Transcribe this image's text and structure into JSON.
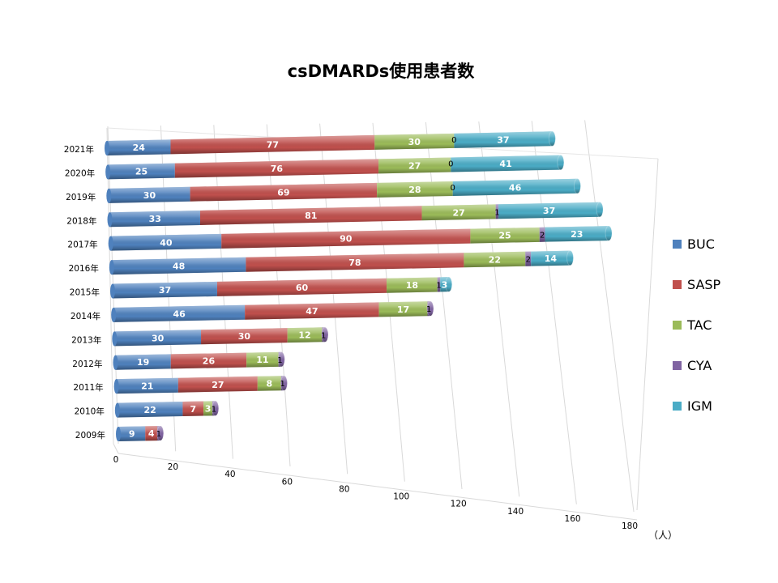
{
  "chart_data": {
    "type": "bar",
    "orientation": "horizontal-stacked-3d",
    "title": "csDMARDs使用患者数",
    "unit": "（人）",
    "xlim": [
      0,
      180
    ],
    "xticks": [
      "0",
      "20",
      "40",
      "60",
      "80",
      "100",
      "120",
      "140",
      "160",
      "180"
    ],
    "grid": true,
    "legend_position": "right",
    "categories": [
      "2009年",
      "2010年",
      "2011年",
      "2012年",
      "2013年",
      "2014年",
      "2015年",
      "2016年",
      "2017年",
      "2018年",
      "2019年",
      "2020年",
      "2021年"
    ],
    "series": [
      {
        "name": "BUC",
        "color": "#4f81bd",
        "values": [
          9,
          22,
          21,
          19,
          30,
          46,
          37,
          48,
          40,
          33,
          30,
          25,
          24
        ]
      },
      {
        "name": "SASP",
        "color": "#c0504d",
        "values": [
          4,
          7,
          27,
          26,
          30,
          47,
          60,
          78,
          90,
          81,
          69,
          76,
          77
        ]
      },
      {
        "name": "TAC",
        "color": "#9bbb59",
        "values": [
          null,
          3,
          8,
          11,
          12,
          17,
          18,
          22,
          25,
          27,
          28,
          27,
          30
        ]
      },
      {
        "name": "CYA",
        "color": "#8064a2",
        "values": [
          1,
          1,
          1,
          1,
          1,
          1,
          1,
          2,
          2,
          1,
          0,
          0,
          0
        ]
      },
      {
        "name": "IGM",
        "color": "#4bacc6",
        "values": [
          null,
          null,
          null,
          null,
          null,
          null,
          3,
          14,
          23,
          37,
          46,
          41,
          37
        ]
      }
    ]
  }
}
